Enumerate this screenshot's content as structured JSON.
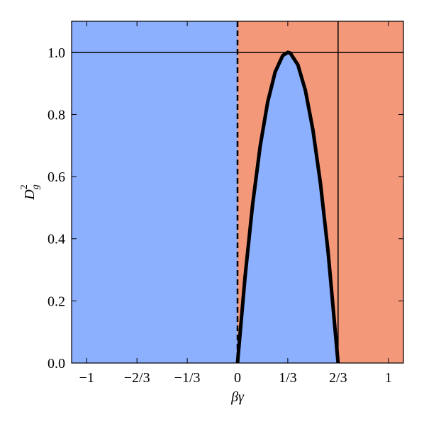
{
  "chart_data": {
    "type": "line",
    "xlabel": "βγ",
    "ylabel": {
      "base": "D",
      "sub": "g",
      "sup": "2"
    },
    "x": [
      0,
      0.05,
      0.1,
      0.15,
      0.2,
      0.25,
      0.3,
      0.3333,
      0.35,
      0.4,
      0.45,
      0.5,
      0.55,
      0.6,
      0.6667
    ],
    "series": [
      {
        "color": "#000000",
        "fill": "#8caffe",
        "values": [
          0,
          0.2775,
          0.51,
          0.6975,
          0.84,
          0.9375,
          0.99,
          1,
          0.9975,
          0.96,
          0.8775,
          0.75,
          0.5775,
          0.36,
          0
        ]
      }
    ],
    "regions": [
      {
        "x": [
          -1.1,
          0
        ],
        "color": "#8caffe"
      },
      {
        "x": [
          0,
          1.1
        ],
        "color": "#f4987a"
      }
    ],
    "hlines": [
      {
        "y": 1,
        "style": "solid"
      }
    ],
    "vlines": [
      {
        "x": 0,
        "style": "dashed"
      },
      {
        "x": 0.6667,
        "style": "solid"
      }
    ],
    "xlim": [
      -1.1,
      1.1
    ],
    "ylim": [
      0,
      1.1
    ],
    "xticks": [
      {
        "value": -1,
        "label": "−1"
      },
      {
        "value": -0.6667,
        "label": "−2/3"
      },
      {
        "value": -0.3333,
        "label": "−1/3"
      },
      0,
      {
        "value": 0.3333,
        "label": "1/3"
      },
      {
        "value": 0.6667,
        "label": "2/3"
      },
      1
    ],
    "yticks": [
      {
        "value": 0,
        "label": "0.0"
      },
      {
        "value": 0.2,
        "label": "0.2"
      },
      {
        "value": 0.4,
        "label": "0.4"
      },
      {
        "value": 0.6,
        "label": "0.6"
      },
      {
        "value": 0.8,
        "label": "0.8"
      },
      {
        "value": 1,
        "label": "1.0"
      }
    ]
  }
}
